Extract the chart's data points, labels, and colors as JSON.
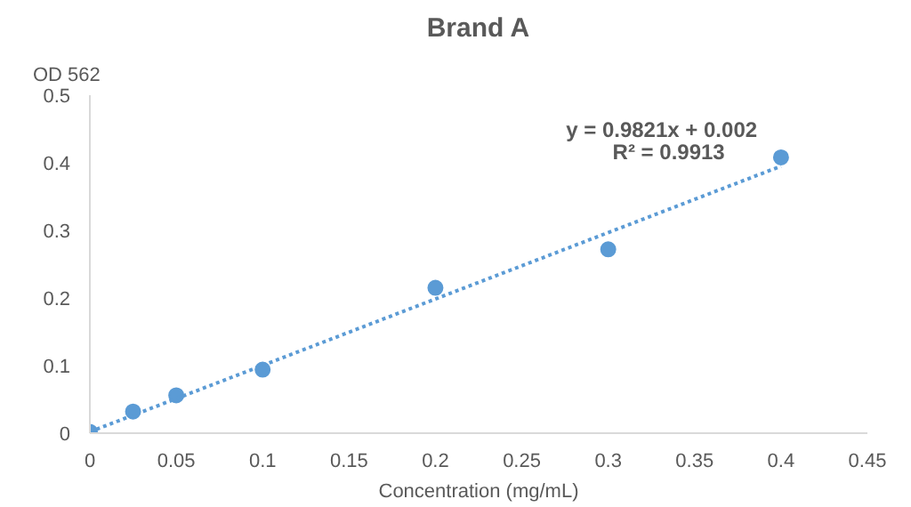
{
  "chart_data": {
    "type": "scatter",
    "title": "Brand A",
    "xlabel": "Concentration (mg/mL)",
    "ylabel": "OD 562",
    "xlim": [
      0,
      0.45
    ],
    "xticks": [
      0,
      0.05,
      0.1,
      0.15,
      0.2,
      0.25,
      0.3,
      0.35,
      0.4,
      0.45
    ],
    "ylim": [
      0,
      0.5
    ],
    "yticks": [
      0,
      0.1,
      0.2,
      0.3,
      0.4,
      0.5
    ],
    "grid": false,
    "marker": "circle",
    "series": [
      {
        "color": "#5b9bd5",
        "x": [
          0,
          0.025,
          0.05,
          0.1,
          0.2,
          0.3,
          0.4
        ],
        "values": [
          0.002,
          0.032,
          0.056,
          0.094,
          0.215,
          0.272,
          0.408
        ]
      },
      {
        "type": "line",
        "color": "#5b9bd5",
        "line_style": "dotted",
        "marker": "none",
        "x": [
          0,
          0.4
        ],
        "values": [
          0.002,
          0.395
        ]
      }
    ],
    "annotations": [
      "y = 0.9821x + 0.002",
      "R² = 0.9913"
    ]
  }
}
